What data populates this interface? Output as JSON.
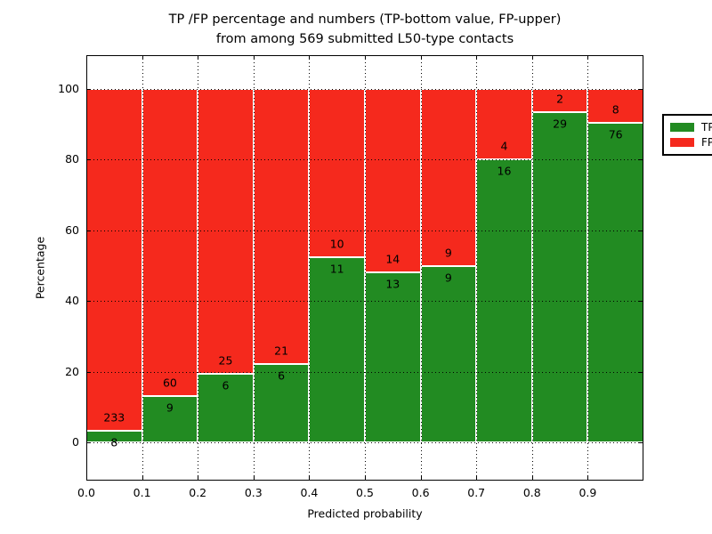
{
  "chart_data": {
    "type": "bar",
    "stacked": true,
    "title": "TP /FP percentage and numbers (TP-bottom value, FP-upper)\nfrom among 569 submitted L50-type contacts",
    "xlabel": "Predicted probability",
    "ylabel": "Percentage",
    "bins": [
      "0.0",
      "0.1",
      "0.2",
      "0.3",
      "0.4",
      "0.5",
      "0.6",
      "0.7",
      "0.8",
      "0.9"
    ],
    "series": [
      {
        "name": "TP",
        "color": "#228b22",
        "counts": [
          8,
          9,
          6,
          6,
          11,
          13,
          9,
          16,
          29,
          76
        ]
      },
      {
        "name": "FP",
        "color": "#f5291d",
        "counts": [
          233,
          60,
          25,
          21,
          10,
          14,
          9,
          4,
          2,
          8
        ]
      }
    ],
    "bar_unit": "percent of bin total, stacked to 100",
    "tp_percent_per_bin": [
      3.32,
      13.04,
      19.35,
      22.22,
      52.38,
      48.15,
      50.0,
      80.0,
      93.55,
      90.48
    ],
    "x_ticks": [
      "0.0",
      "0.1",
      "0.2",
      "0.3",
      "0.4",
      "0.5",
      "0.6",
      "0.7",
      "0.8",
      "0.9"
    ],
    "y_ticks": [
      0,
      20,
      40,
      60,
      80,
      100
    ],
    "xlim": [
      0.0,
      1.0
    ],
    "ylim": [
      -10.8,
      109.6
    ],
    "grid": true,
    "grid_style": "dotted",
    "legend": {
      "position": "upper right",
      "entries": [
        {
          "label": "TP",
          "color": "#228b22"
        },
        {
          "label": "FP",
          "color": "#f5291d"
        }
      ]
    }
  }
}
